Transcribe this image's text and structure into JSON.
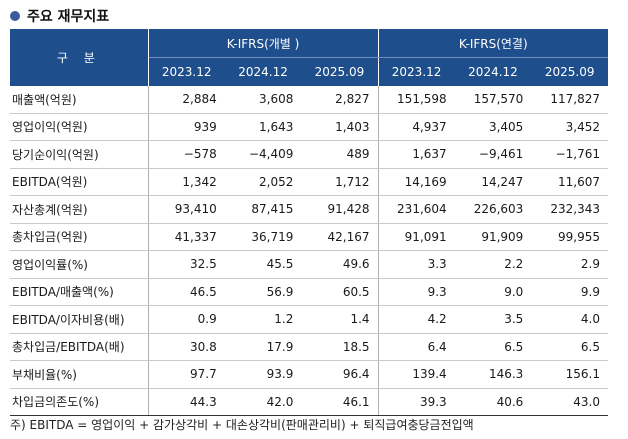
{
  "title": "주요 재무지표",
  "table": {
    "header_label": "구 분",
    "groups": [
      "K-IFRS(개별 )",
      "K-IFRS(연결)"
    ],
    "periods": [
      "2023.12",
      "2024.12",
      "2025.09",
      "2023.12",
      "2024.12",
      "2025.09"
    ],
    "rows": [
      {
        "label": "매출액(억원)",
        "values": [
          "2,884",
          "3,608",
          "2,827",
          "151,598",
          "157,570",
          "117,827"
        ]
      },
      {
        "label": "영업이익(억원)",
        "values": [
          "939",
          "1,643",
          "1,403",
          "4,937",
          "3,405",
          "3,452"
        ]
      },
      {
        "label": "당기순이익(억원)",
        "values": [
          "−578",
          "−4,409",
          "489",
          "1,637",
          "−9,461",
          "−1,761"
        ]
      },
      {
        "label": "EBITDA(억원)",
        "values": [
          "1,342",
          "2,052",
          "1,712",
          "14,169",
          "14,247",
          "11,607"
        ]
      },
      {
        "label": "자산총계(억원)",
        "values": [
          "93,410",
          "87,415",
          "91,428",
          "231,604",
          "226,603",
          "232,343"
        ]
      },
      {
        "label": "총차입금(억원)",
        "values": [
          "41,337",
          "36,719",
          "42,167",
          "91,091",
          "91,909",
          "99,955"
        ]
      },
      {
        "label": "영업이익률(%)",
        "values": [
          "32.5",
          "45.5",
          "49.6",
          "3.3",
          "2.2",
          "2.9"
        ]
      },
      {
        "label": "EBITDA/매출액(%)",
        "values": [
          "46.5",
          "56.9",
          "60.5",
          "9.3",
          "9.0",
          "9.9"
        ]
      },
      {
        "label": "EBITDA/이자비용(배)",
        "values": [
          "0.9",
          "1.2",
          "1.4",
          "4.2",
          "3.5",
          "4.0"
        ]
      },
      {
        "label": "총차입금/EBITDA(배)",
        "values": [
          "30.8",
          "17.9",
          "18.5",
          "6.4",
          "6.5",
          "6.5"
        ]
      },
      {
        "label": "부채비율(%)",
        "values": [
          "97.7",
          "93.9",
          "96.4",
          "139.4",
          "146.3",
          "156.1"
        ]
      },
      {
        "label": "차입금의존도(%)",
        "values": [
          "44.3",
          "42.0",
          "46.1",
          "39.3",
          "40.6",
          "43.0"
        ]
      }
    ]
  },
  "footnote": "주) EBITDA = 영업이익 + 감가상각비 + 대손상각비(판매관리비) + 퇴직급여충당금전입액",
  "colors": {
    "header_bg": "#1e4e8c",
    "title_icon": "#3a5a9c"
  }
}
